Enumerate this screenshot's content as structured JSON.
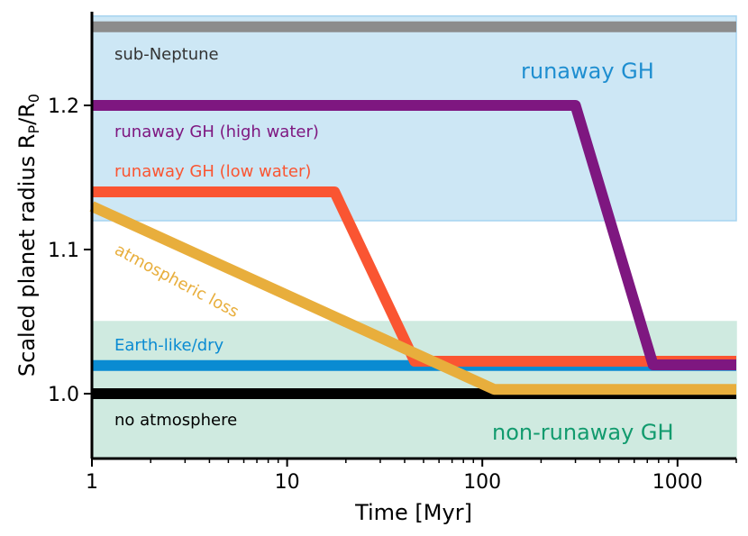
{
  "chart_data": {
    "type": "line",
    "xlabel": "Time [Myr]",
    "ylabel": "Scaled planet radius R",
    "ylabel_sub1": "P",
    "ylabel_mid": "/R",
    "ylabel_sub2": "0",
    "xscale": "log",
    "xlim": [
      1,
      2000
    ],
    "ylim": [
      0.955,
      1.265
    ],
    "x_ticks": [
      1,
      10,
      100,
      1000
    ],
    "x_tick_labels": [
      "1",
      "10",
      "100",
      "1000"
    ],
    "y_ticks": [
      1.0,
      1.1,
      1.2
    ],
    "y_tick_labels": [
      "1.0",
      "1.1",
      "1.2"
    ],
    "grid": false,
    "regions": [
      {
        "label": "runaway GH",
        "y_range": [
          1.12,
          1.262
        ],
        "fill": "#cde7f5",
        "edge": "#a6d4f0",
        "text_color": "#1e8ed0"
      },
      {
        "label": "non-runaway GH",
        "y_range": [
          0.955,
          1.05
        ],
        "fill": "#cfeae0",
        "edge": "#cfeae0",
        "text_color": "#129b6e"
      }
    ],
    "series": [
      {
        "label": "sub-Neptune",
        "color": "#8c8c8c",
        "label_color": "#333333",
        "x": [
          1,
          2000
        ],
        "y": [
          1.2545,
          1.2545
        ]
      },
      {
        "label": "runaway GH (high water)",
        "color": "#7e1780",
        "label_color": "#7e1780",
        "x": [
          1,
          300,
          750,
          2000
        ],
        "y": [
          1.2,
          1.2,
          1.02,
          1.02
        ]
      },
      {
        "label": "runaway GH (low water)",
        "color": "#fa5532",
        "label_color": "#fa5532",
        "x": [
          1,
          17.5,
          45,
          2000
        ],
        "y": [
          1.14,
          1.14,
          1.0225,
          1.0225
        ]
      },
      {
        "label": "Earth-like/dry",
        "color": "#0a8bd2",
        "label_color": "#0a8bd2",
        "x": [
          1,
          2000
        ],
        "y": [
          1.0195,
          1.0195
        ]
      },
      {
        "label": "no atmosphere",
        "color": "#000000",
        "label_color": "#000000",
        "x": [
          1,
          2000
        ],
        "y": [
          1.0,
          1.0
        ]
      },
      {
        "label": "atmospheric loss",
        "color": "#e8ae3c",
        "label_color": "#e8ae3c",
        "x": [
          1,
          115,
          2000
        ],
        "y": [
          1.13,
          1.003,
          1.003
        ]
      }
    ]
  }
}
